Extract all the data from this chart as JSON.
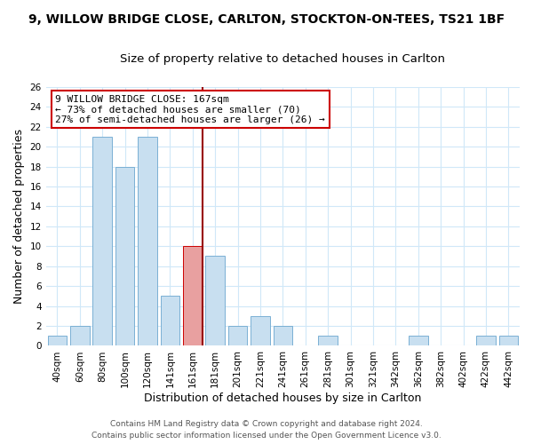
{
  "title": "9, WILLOW BRIDGE CLOSE, CARLTON, STOCKTON-ON-TEES, TS21 1BF",
  "subtitle": "Size of property relative to detached houses in Carlton",
  "xlabel": "Distribution of detached houses by size in Carlton",
  "ylabel": "Number of detached properties",
  "bar_labels": [
    "40sqm",
    "60sqm",
    "80sqm",
    "100sqm",
    "120sqm",
    "141sqm",
    "161sqm",
    "181sqm",
    "201sqm",
    "221sqm",
    "241sqm",
    "261sqm",
    "281sqm",
    "301sqm",
    "321sqm",
    "342sqm",
    "362sqm",
    "382sqm",
    "402sqm",
    "422sqm",
    "442sqm"
  ],
  "bar_heights": [
    1,
    2,
    21,
    18,
    21,
    5,
    10,
    9,
    2,
    3,
    2,
    0,
    1,
    0,
    0,
    0,
    1,
    0,
    0,
    1,
    1
  ],
  "bar_color": "#c8dff0",
  "bar_edge_color": "#7ab0d4",
  "highlight_bar_index": 6,
  "highlight_color": "#e8a0a0",
  "highlight_edge_color": "#cc0000",
  "vline_color": "#990000",
  "annotation_lines": [
    "9 WILLOW BRIDGE CLOSE: 167sqm",
    "← 73% of detached houses are smaller (70)",
    "27% of semi-detached houses are larger (26) →"
  ],
  "annotation_box_color": "#ffffff",
  "annotation_box_edge_color": "#cc0000",
  "ylim": [
    0,
    26
  ],
  "yticks": [
    0,
    2,
    4,
    6,
    8,
    10,
    12,
    14,
    16,
    18,
    20,
    22,
    24,
    26
  ],
  "footer_line1": "Contains HM Land Registry data © Crown copyright and database right 2024.",
  "footer_line2": "Contains public sector information licensed under the Open Government Licence v3.0.",
  "background_color": "#ffffff",
  "grid_color": "#d0e8f8",
  "title_fontsize": 10,
  "subtitle_fontsize": 9.5,
  "axis_label_fontsize": 9,
  "tick_fontsize": 7.5,
  "annotation_fontsize": 8,
  "footer_fontsize": 6.5
}
